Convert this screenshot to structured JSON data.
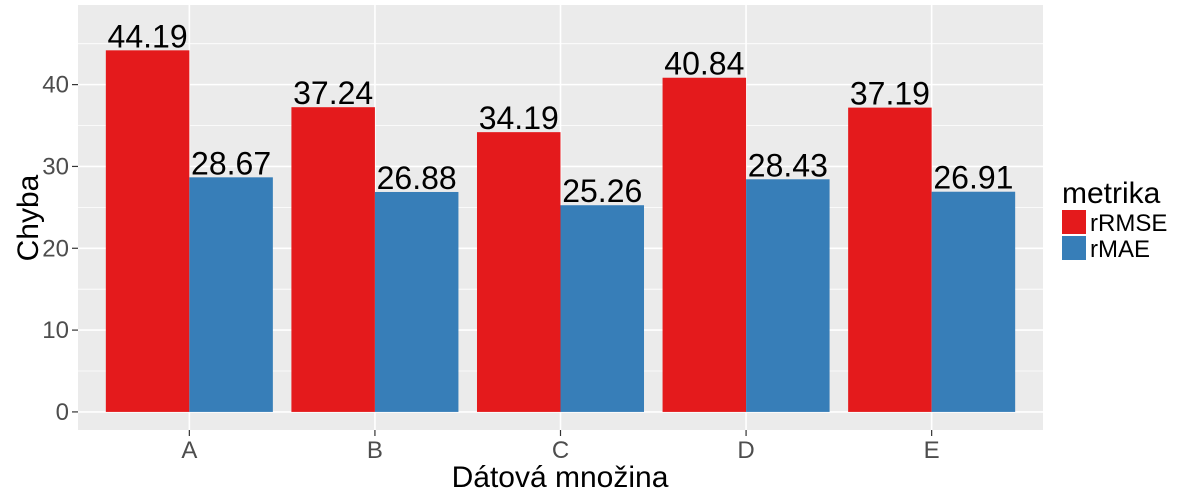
{
  "chart_data": {
    "type": "bar",
    "title": "",
    "xlabel": "Dátová množina",
    "ylabel": "Chyba",
    "categories": [
      "A",
      "B",
      "C",
      "D",
      "E"
    ],
    "series": [
      {
        "name": "rRMSE",
        "color": "#E41A1C",
        "values": [
          44.19,
          37.24,
          34.19,
          40.84,
          37.19
        ]
      },
      {
        "name": "rMAE",
        "color": "#377EB8",
        "values": [
          28.67,
          26.88,
          25.26,
          28.43,
          26.91
        ]
      }
    ],
    "data_labels": {
      "rRMSE": [
        "44.19",
        "37.24",
        "34.19",
        "40.84",
        "37.19"
      ],
      "rMAE": [
        "28.67",
        "26.88",
        "25.26",
        "28.43",
        "26.91"
      ]
    },
    "y_ticks": [
      0,
      10,
      20,
      30,
      40
    ],
    "y_tick_labels": [
      "0",
      "10",
      "20",
      "30",
      "40"
    ],
    "ylim": [
      -2.21,
      49.73
    ],
    "grid": true,
    "panel_background": "#EBEBEB",
    "legend": {
      "title": "metrika",
      "position": "right",
      "entries": [
        "rRMSE",
        "rMAE"
      ]
    }
  }
}
